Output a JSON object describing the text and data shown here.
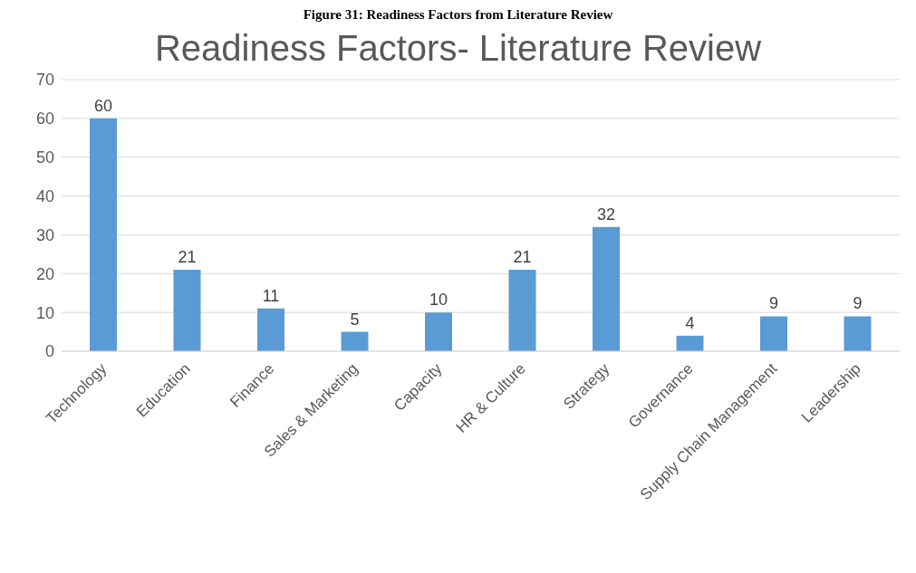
{
  "chart_data": {
    "type": "bar",
    "title": "Readiness Factors- Literature Review",
    "annotations": [
      "Figure 31: Readiness Factors from Literature Review"
    ],
    "categories": [
      "Technology",
      "Education",
      "Finance",
      "Sales & Marketing",
      "Capacity",
      "HR & Culture",
      "Strategy",
      "Governance",
      "Supply Chain Management",
      "Leadership"
    ],
    "values": [
      60,
      21,
      11,
      5,
      10,
      21,
      32,
      4,
      9,
      9
    ],
    "color": "#5b9bd5",
    "ylim": [
      0,
      70
    ],
    "yticks": [
      0,
      10,
      20,
      30,
      40,
      50,
      60,
      70
    ],
    "grid": "y",
    "data_labels": true,
    "legend": false
  }
}
